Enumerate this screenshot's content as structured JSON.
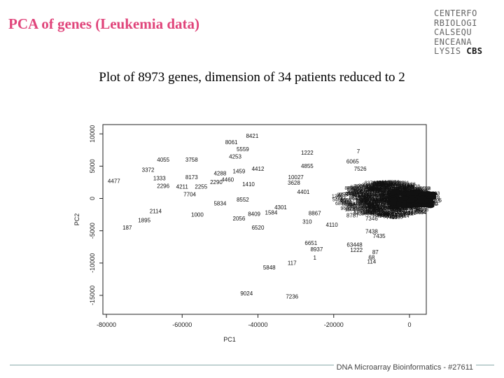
{
  "slide": {
    "title": "PCA of genes (Leukemia data)",
    "title_color": "#e0457b",
    "subtitle": "Plot of 8973 genes, dimension of 34 patients reduced to 2",
    "footer": "DNA Microarray Bioinformatics - #27611"
  },
  "logo": {
    "lines": [
      "CENTERFO",
      "RBIOLOGI",
      "CALSEQU",
      "ENCEANA",
      "LYSIS"
    ],
    "brand": "CBS"
  },
  "chart_data": {
    "type": "scatter",
    "title": "",
    "xlabel": "PC1",
    "ylabel": "PC2",
    "xlim": [
      -80000,
      0
    ],
    "ylim": [
      -17500,
      11000
    ],
    "x_ticks": [
      {
        "value": -80000,
        "label": "-80000"
      },
      {
        "value": -60000,
        "label": "-60000"
      },
      {
        "value": -40000,
        "label": "-40000"
      },
      {
        "value": -20000,
        "label": "-20000"
      },
      {
        "value": 0,
        "label": "0"
      }
    ],
    "y_ticks": [
      {
        "value": 10000,
        "label": "10000"
      },
      {
        "value": 5000,
        "label": "5000"
      },
      {
        "value": 0,
        "label": "0"
      },
      {
        "value": -5000,
        "label": "-5000"
      },
      {
        "value": -10000,
        "label": "-10000"
      },
      {
        "value": -15000,
        "label": "-15000"
      }
    ],
    "cluster": {
      "center_x": -1500,
      "center_y": 0,
      "note": "dense cloud of overlapping gene labels near origin"
    },
    "points": [
      {
        "label": "8421",
        "x": -41500,
        "y": 9400
      },
      {
        "label": "8061",
        "x": -47000,
        "y": 8400
      },
      {
        "label": "5559",
        "x": -44000,
        "y": 7300
      },
      {
        "label": "4253",
        "x": -46000,
        "y": 6200
      },
      {
        "label": "1222",
        "x": -27000,
        "y": 6800
      },
      {
        "label": "7",
        "x": -13500,
        "y": 7000
      },
      {
        "label": "4055",
        "x": -65000,
        "y": 5700
      },
      {
        "label": "3758",
        "x": -57500,
        "y": 5700
      },
      {
        "label": "4855",
        "x": -27000,
        "y": 4700
      },
      {
        "label": "6065",
        "x": -15000,
        "y": 5400
      },
      {
        "label": "7526",
        "x": -13000,
        "y": 4300
      },
      {
        "label": "3372",
        "x": -69000,
        "y": 4100
      },
      {
        "label": "4412",
        "x": -40000,
        "y": 4300
      },
      {
        "label": "1459",
        "x": -45000,
        "y": 3900
      },
      {
        "label": "4288",
        "x": -50000,
        "y": 3600
      },
      {
        "label": "1333",
        "x": -66000,
        "y": 2800
      },
      {
        "label": "8173",
        "x": -57500,
        "y": 3000
      },
      {
        "label": "4477",
        "x": -78000,
        "y": 2400
      },
      {
        "label": "4460",
        "x": -48000,
        "y": 2600
      },
      {
        "label": "10027",
        "x": -30000,
        "y": 3000
      },
      {
        "label": "3628",
        "x": -30500,
        "y": 2100
      },
      {
        "label": "2290",
        "x": -51000,
        "y": 2200
      },
      {
        "label": "1410",
        "x": -42500,
        "y": 1900
      },
      {
        "label": "2255",
        "x": -55000,
        "y": 1500
      },
      {
        "label": "2296",
        "x": -65000,
        "y": 1600
      },
      {
        "label": "4211",
        "x": -60000,
        "y": 1500
      },
      {
        "label": "7704",
        "x": -58000,
        "y": 300
      },
      {
        "label": "8552",
        "x": -44000,
        "y": -500
      },
      {
        "label": "5834",
        "x": -50000,
        "y": -1100
      },
      {
        "label": "4401",
        "x": -28000,
        "y": 700
      },
      {
        "label": "4301",
        "x": -34000,
        "y": -1700
      },
      {
        "label": "2114",
        "x": -67000,
        "y": -2300
      },
      {
        "label": "1895",
        "x": -70000,
        "y": -3700
      },
      {
        "label": "1000",
        "x": -56000,
        "y": -2800
      },
      {
        "label": "2056",
        "x": -45000,
        "y": -3400
      },
      {
        "label": "8409",
        "x": -41000,
        "y": -2700
      },
      {
        "label": "1584",
        "x": -36500,
        "y": -2500
      },
      {
        "label": "8867",
        "x": -25000,
        "y": -2600
      },
      {
        "label": "8787",
        "x": -15000,
        "y": -2900
      },
      {
        "label": "7346",
        "x": -10000,
        "y": -3400
      },
      {
        "label": "310",
        "x": -27000,
        "y": -3900
      },
      {
        "label": "4110",
        "x": -20500,
        "y": -4400
      },
      {
        "label": "6520",
        "x": -40000,
        "y": -4800
      },
      {
        "label": "187",
        "x": -74500,
        "y": -4800
      },
      {
        "label": "7438",
        "x": -10000,
        "y": -5400
      },
      {
        "label": "7435",
        "x": -8000,
        "y": -6100
      },
      {
        "label": "6651",
        "x": -26000,
        "y": -7200
      },
      {
        "label": "8937",
        "x": -24500,
        "y": -8200
      },
      {
        "label": "63448",
        "x": -14500,
        "y": -7500
      },
      {
        "label": "1222",
        "x": -14000,
        "y": -8300
      },
      {
        "label": "87",
        "x": -9000,
        "y": -8600
      },
      {
        "label": "68",
        "x": -10000,
        "y": -9400
      },
      {
        "label": "1",
        "x": -25000,
        "y": -9500
      },
      {
        "label": "117",
        "x": -31000,
        "y": -10300
      },
      {
        "label": "114",
        "x": -10000,
        "y": -10100
      },
      {
        "label": "5848",
        "x": -37000,
        "y": -11000
      },
      {
        "label": "9024",
        "x": -43000,
        "y": -15000
      },
      {
        "label": "7236",
        "x": -31000,
        "y": -15500
      }
    ]
  }
}
